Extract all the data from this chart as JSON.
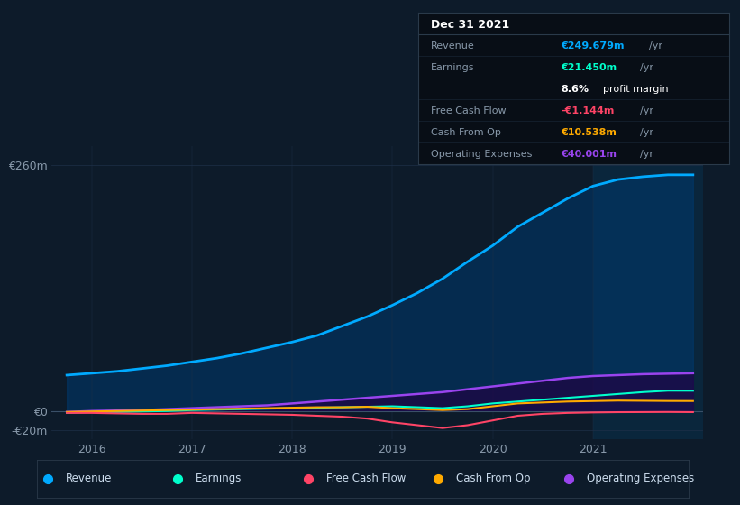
{
  "bg_color": "#0d1b2a",
  "plot_bg_color": "#0d1b2a",
  "grid_color": "#1e3048",
  "axis_label_color": "#8899aa",
  "text_color": "#ccddee",
  "years": [
    2015.75,
    2016.0,
    2016.25,
    2016.5,
    2016.75,
    2017.0,
    2017.25,
    2017.5,
    2017.75,
    2018.0,
    2018.25,
    2018.5,
    2018.75,
    2019.0,
    2019.25,
    2019.5,
    2019.75,
    2020.0,
    2020.25,
    2020.5,
    2020.75,
    2021.0,
    2021.25,
    2021.5,
    2021.75,
    2022.0
  ],
  "revenue": [
    38,
    40,
    42,
    45,
    48,
    52,
    56,
    61,
    67,
    73,
    80,
    90,
    100,
    112,
    125,
    140,
    158,
    175,
    195,
    210,
    225,
    238,
    245,
    248,
    250,
    250
  ],
  "earnings": [
    -2,
    -1,
    -1,
    -0.5,
    0,
    1,
    1.5,
    2,
    2.5,
    3,
    3.5,
    4,
    4.5,
    5,
    4,
    3,
    5,
    8,
    10,
    12,
    14,
    16,
    18,
    20,
    21.5,
    21.45
  ],
  "free_cash_flow": [
    -2,
    -2,
    -2.5,
    -3,
    -3,
    -2,
    -2.5,
    -3,
    -3.5,
    -4,
    -5,
    -6,
    -8,
    -12,
    -15,
    -18,
    -15,
    -10,
    -5,
    -3,
    -2,
    -1.5,
    -1.2,
    -1.1,
    -1.0,
    -1.144
  ],
  "cash_from_op": [
    -1,
    -0.5,
    0,
    0.5,
    1,
    1.5,
    2,
    2.5,
    3,
    3.5,
    4,
    4,
    4.5,
    3,
    2,
    1,
    2,
    5,
    8,
    9,
    10,
    10.5,
    11,
    10.8,
    10.6,
    10.538
  ],
  "operating_expenses": [
    -1,
    0,
    0.5,
    1,
    2,
    3,
    4,
    5,
    6,
    8,
    10,
    12,
    14,
    16,
    18,
    20,
    23,
    26,
    29,
    32,
    35,
    37,
    38,
    39,
    39.5,
    40.001
  ],
  "revenue_color": "#00aaff",
  "revenue_fill_color": "#003a6e",
  "earnings_color": "#00ffcc",
  "free_cash_flow_color": "#ff4466",
  "cash_from_op_color": "#ffaa00",
  "operating_expenses_color": "#9944ee",
  "highlight_x_start": 2021.0,
  "highlight_x_end": 2022.1,
  "ylim_min": -30,
  "ylim_max": 280,
  "yticks": [
    260,
    0,
    -20
  ],
  "ytick_labels": [
    "€260m",
    "€0",
    "-€20m"
  ],
  "xticks": [
    2016,
    2017,
    2018,
    2019,
    2020,
    2021
  ],
  "xlim_min": 2015.6,
  "xlim_max": 2022.1,
  "info_box": {
    "title": "Dec 31 2021",
    "rows": [
      {
        "label": "Revenue",
        "value": "€249.679m",
        "value_color": "#00aaff"
      },
      {
        "label": "Earnings",
        "value": "€21.450m",
        "value_color": "#00ffcc"
      },
      {
        "label": "",
        "value": "8.6% profit margin",
        "value_color": "#ffffff"
      },
      {
        "label": "Free Cash Flow",
        "value": "-€1.144m",
        "value_color": "#ff4466"
      },
      {
        "label": "Cash From Op",
        "value": "€10.538m",
        "value_color": "#ffaa00"
      },
      {
        "label": "Operating Expenses",
        "value": "€40.001m",
        "value_color": "#9944ee"
      }
    ]
  },
  "legend_items": [
    {
      "label": "Revenue",
      "color": "#00aaff"
    },
    {
      "label": "Earnings",
      "color": "#00ffcc"
    },
    {
      "label": "Free Cash Flow",
      "color": "#ff4466"
    },
    {
      "label": "Cash From Op",
      "color": "#ffaa00"
    },
    {
      "label": "Operating Expenses",
      "color": "#9944ee"
    }
  ]
}
